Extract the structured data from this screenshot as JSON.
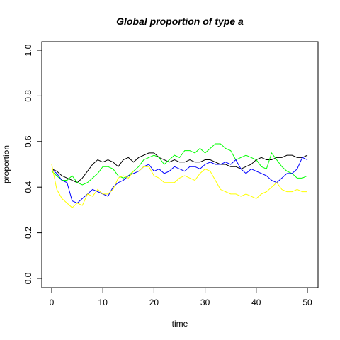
{
  "chart_data": {
    "type": "line",
    "title": "Global proportion of type a",
    "xlabel": "time",
    "ylabel": "proportion",
    "xlim": [
      0,
      50
    ],
    "ylim": [
      0,
      1
    ],
    "x_ticks": [
      0,
      10,
      20,
      30,
      40,
      50
    ],
    "y_ticks": [
      "0.0",
      "0.2",
      "0.4",
      "0.6",
      "0.8",
      "1.0"
    ],
    "grid": false,
    "legend": "none",
    "x": [
      0,
      1,
      2,
      3,
      4,
      5,
      6,
      7,
      8,
      9,
      10,
      11,
      12,
      13,
      14,
      15,
      16,
      17,
      18,
      19,
      20,
      21,
      22,
      23,
      24,
      25,
      26,
      27,
      28,
      29,
      30,
      31,
      32,
      33,
      34,
      35,
      36,
      37,
      38,
      39,
      40,
      41,
      42,
      43,
      44,
      45,
      46,
      47,
      48,
      49,
      50
    ],
    "series": [
      {
        "color": "#000000",
        "values": [
          0.48,
          0.47,
          0.45,
          0.44,
          0.43,
          0.42,
          0.44,
          0.47,
          0.5,
          0.52,
          0.51,
          0.52,
          0.51,
          0.49,
          0.52,
          0.53,
          0.51,
          0.53,
          0.54,
          0.55,
          0.55,
          0.53,
          0.52,
          0.51,
          0.52,
          0.51,
          0.51,
          0.52,
          0.51,
          0.51,
          0.52,
          0.52,
          0.51,
          0.5,
          0.5,
          0.49,
          0.49,
          0.48,
          0.49,
          0.5,
          0.52,
          0.53,
          0.52,
          0.52,
          0.53,
          0.53,
          0.54,
          0.54,
          0.53,
          0.53,
          0.54
        ]
      },
      {
        "color": "#00ff00",
        "values": [
          0.47,
          0.45,
          0.43,
          0.43,
          0.45,
          0.42,
          0.41,
          0.42,
          0.44,
          0.46,
          0.49,
          0.49,
          0.48,
          0.45,
          0.44,
          0.45,
          0.47,
          0.49,
          0.52,
          0.53,
          0.54,
          0.53,
          0.5,
          0.52,
          0.54,
          0.53,
          0.56,
          0.56,
          0.55,
          0.57,
          0.55,
          0.57,
          0.59,
          0.59,
          0.57,
          0.56,
          0.52,
          0.53,
          0.54,
          0.53,
          0.52,
          0.49,
          0.48,
          0.55,
          0.52,
          0.49,
          0.47,
          0.46,
          0.44,
          0.44,
          0.45
        ]
      },
      {
        "color": "#0000ff",
        "values": [
          0.48,
          0.46,
          0.43,
          0.42,
          0.34,
          0.33,
          0.35,
          0.37,
          0.39,
          0.38,
          0.37,
          0.36,
          0.4,
          0.42,
          0.43,
          0.45,
          0.46,
          0.47,
          0.49,
          0.5,
          0.47,
          0.48,
          0.46,
          0.47,
          0.49,
          0.48,
          0.47,
          0.49,
          0.49,
          0.48,
          0.5,
          0.51,
          0.5,
          0.5,
          0.51,
          0.5,
          0.52,
          0.48,
          0.46,
          0.48,
          0.47,
          0.46,
          0.45,
          0.43,
          0.42,
          0.44,
          0.46,
          0.46,
          0.48,
          0.53,
          0.52
        ]
      },
      {
        "color": "#ffff00",
        "values": [
          0.5,
          0.39,
          0.35,
          0.33,
          0.31,
          0.33,
          0.32,
          0.37,
          0.36,
          0.39,
          0.37,
          0.37,
          0.39,
          0.44,
          0.45,
          0.44,
          0.47,
          0.47,
          0.49,
          0.49,
          0.45,
          0.44,
          0.42,
          0.42,
          0.42,
          0.44,
          0.45,
          0.44,
          0.43,
          0.46,
          0.48,
          0.47,
          0.43,
          0.39,
          0.38,
          0.37,
          0.37,
          0.36,
          0.37,
          0.36,
          0.35,
          0.37,
          0.38,
          0.4,
          0.42,
          0.39,
          0.38,
          0.38,
          0.39,
          0.38,
          0.38
        ]
      }
    ]
  }
}
